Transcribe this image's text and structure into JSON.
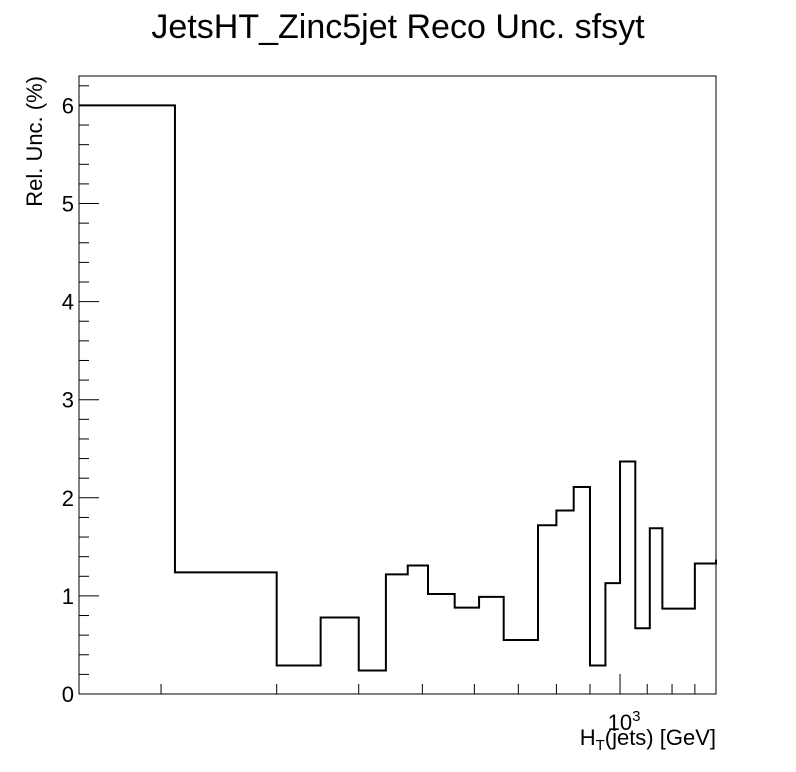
{
  "chart_data": {
    "type": "step",
    "title": "JetsHT_Zinc5jet Reco Unc. sfsyt",
    "xlabel": {
      "main": "H",
      "sub": "T",
      "rest": "(jets) [GeV]"
    },
    "ylabel": "Rel. Unc. (%)",
    "x_scale": "log",
    "xlim": [
      150,
      1400
    ],
    "ylim": [
      0,
      6.3
    ],
    "y_ticks": [
      "0",
      "1",
      "2",
      "3",
      "4",
      "5",
      "6"
    ],
    "x_tick_label": {
      "base": "10",
      "exp": "3"
    },
    "bin_edges": [
      150,
      210,
      300,
      350,
      400,
      440,
      475,
      510,
      560,
      610,
      665,
      750,
      800,
      850,
      900,
      950,
      1000,
      1055,
      1110,
      1160,
      1300,
      1400
    ],
    "values": [
      6.0,
      1.24,
      0.29,
      0.78,
      0.24,
      1.22,
      1.31,
      1.02,
      0.88,
      0.99,
      0.55,
      1.72,
      1.87,
      2.11,
      0.29,
      1.13,
      2.37,
      0.67,
      1.69,
      0.87,
      1.33,
      1.37
    ]
  }
}
